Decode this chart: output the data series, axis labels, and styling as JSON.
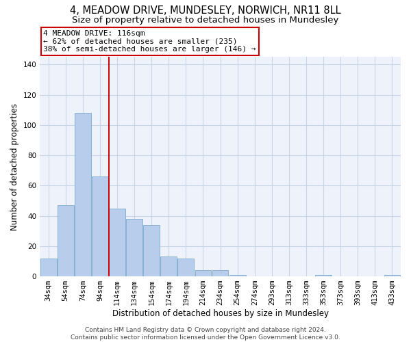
{
  "title_line1": "4, MEADOW DRIVE, MUNDESLEY, NORWICH, NR11 8LL",
  "title_line2": "Size of property relative to detached houses in Mundesley",
  "xlabel": "Distribution of detached houses by size in Mundesley",
  "ylabel": "Number of detached properties",
  "categories": [
    "34sqm",
    "54sqm",
    "74sqm",
    "94sqm",
    "114sqm",
    "134sqm",
    "154sqm",
    "174sqm",
    "194sqm",
    "214sqm",
    "234sqm",
    "254sqm",
    "274sqm",
    "293sqm",
    "313sqm",
    "333sqm",
    "353sqm",
    "373sqm",
    "393sqm",
    "413sqm",
    "433sqm"
  ],
  "values": [
    12,
    47,
    108,
    66,
    45,
    38,
    34,
    13,
    12,
    4,
    4,
    1,
    0,
    0,
    0,
    0,
    1,
    0,
    0,
    0,
    1
  ],
  "bar_color": "#b8ccec",
  "bar_edge_color": "#7aaad0",
  "vline_color": "#cc0000",
  "vline_x_index": 3.5,
  "annotation_line1": "4 MEADOW DRIVE: 116sqm",
  "annotation_line2": "← 62% of detached houses are smaller (235)",
  "annotation_line3": "38% of semi-detached houses are larger (146) →",
  "annotation_box_color": "#cc0000",
  "ylim": [
    0,
    145
  ],
  "yticks": [
    0,
    20,
    40,
    60,
    80,
    100,
    120,
    140
  ],
  "grid_color": "#c8d4e8",
  "bg_color": "#eef2fb",
  "footer": "Contains HM Land Registry data © Crown copyright and database right 2024.\nContains public sector information licensed under the Open Government Licence v3.0.",
  "title_fontsize": 10.5,
  "subtitle_fontsize": 9.5,
  "axis_label_fontsize": 8.5,
  "tick_fontsize": 7.5,
  "annotation_fontsize": 8,
  "footer_fontsize": 6.5
}
